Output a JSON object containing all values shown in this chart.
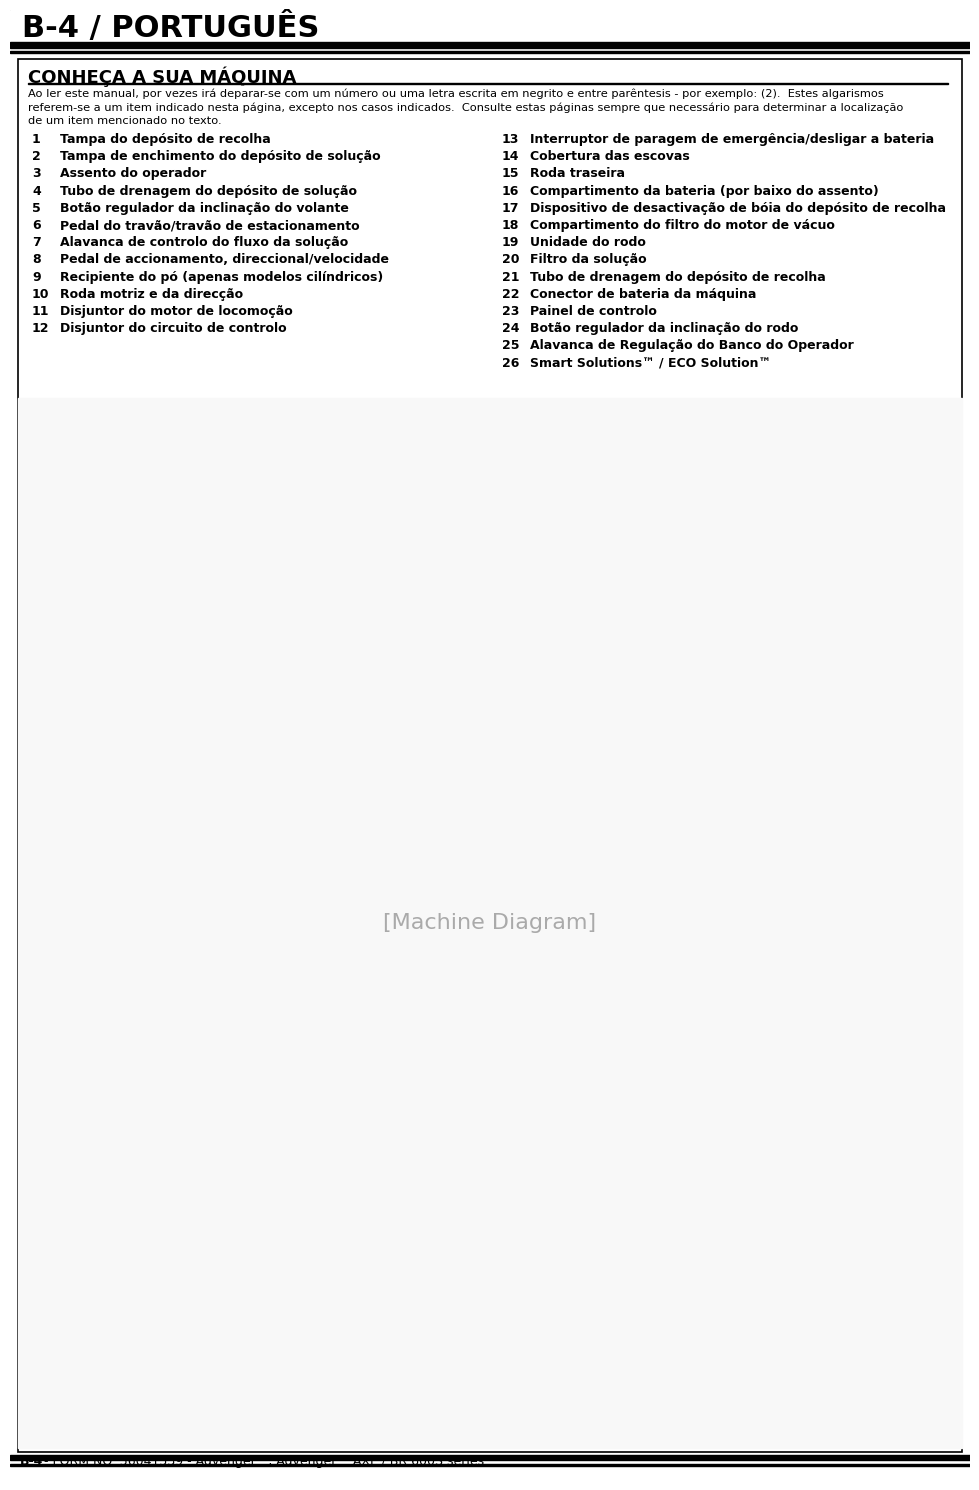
{
  "page_header": "B-4 / PORTUGUÊS",
  "section_title": "CONHEÇA A SUA MÁQUINA",
  "intro_line1": "Ao ler este manual, por vezes irá deparar-se com um número ou uma letra escrita em negrito e entre parêntesis - por exemplo: (2).  Estes algarismos",
  "intro_line2": "referem-se a um item indicado nesta página, excepto nos casos indicados.  Consulte estas páginas sempre que necessário para determinar a localização",
  "intro_line3": "de um item mencionado no texto.",
  "left_items": [
    [
      1,
      "Tampa do depósito de recolha"
    ],
    [
      2,
      "Tampa de enchimento do depósito de solução"
    ],
    [
      3,
      "Assento do operador"
    ],
    [
      4,
      "Tubo de drenagem do depósito de solução"
    ],
    [
      5,
      "Botão regulador da inclinação do volante"
    ],
    [
      6,
      "Pedal do travão/travão de estacionamento"
    ],
    [
      7,
      "Alavanca de controlo do fluxo da solução"
    ],
    [
      8,
      "Pedal de accionamento, direccional/velocidade"
    ],
    [
      9,
      "Recipiente do pó (apenas modelos cilíndricos)"
    ],
    [
      10,
      "Roda motriz e da direcção"
    ],
    [
      11,
      "Disjuntor do motor de locomoção"
    ],
    [
      12,
      "Disjuntor do circuito de controlo"
    ]
  ],
  "right_items": [
    [
      13,
      "Interruptor de paragem de emergência/desligar a bateria"
    ],
    [
      14,
      "Cobertura das escovas"
    ],
    [
      15,
      "Roda traseira"
    ],
    [
      16,
      "Compartimento da bateria (por baixo do assento)"
    ],
    [
      17,
      "Dispositivo de desactivação de bóia do depósito de recolha"
    ],
    [
      18,
      "Compartimento do filtro do motor de vácuo"
    ],
    [
      19,
      "Unidade do rodo"
    ],
    [
      20,
      "Filtro da solução"
    ],
    [
      21,
      "Tubo de drenagem do depósito de recolha"
    ],
    [
      22,
      "Conector de bateria da máquina"
    ],
    [
      23,
      "Painel de controlo"
    ],
    [
      24,
      "Botão regulador da inclinação do rodo"
    ],
    [
      25,
      "Alavanca de Regulação do Banco do Operador"
    ],
    [
      26,
      "Smart Solutions™ / ECO Solution™"
    ]
  ],
  "footer_bold": "B-4",
  "footer_text": " - FORM NO. 56041539 - Advenger™, Advenger™ AXP / BR 600S series",
  "bg_color": "#ffffff"
}
